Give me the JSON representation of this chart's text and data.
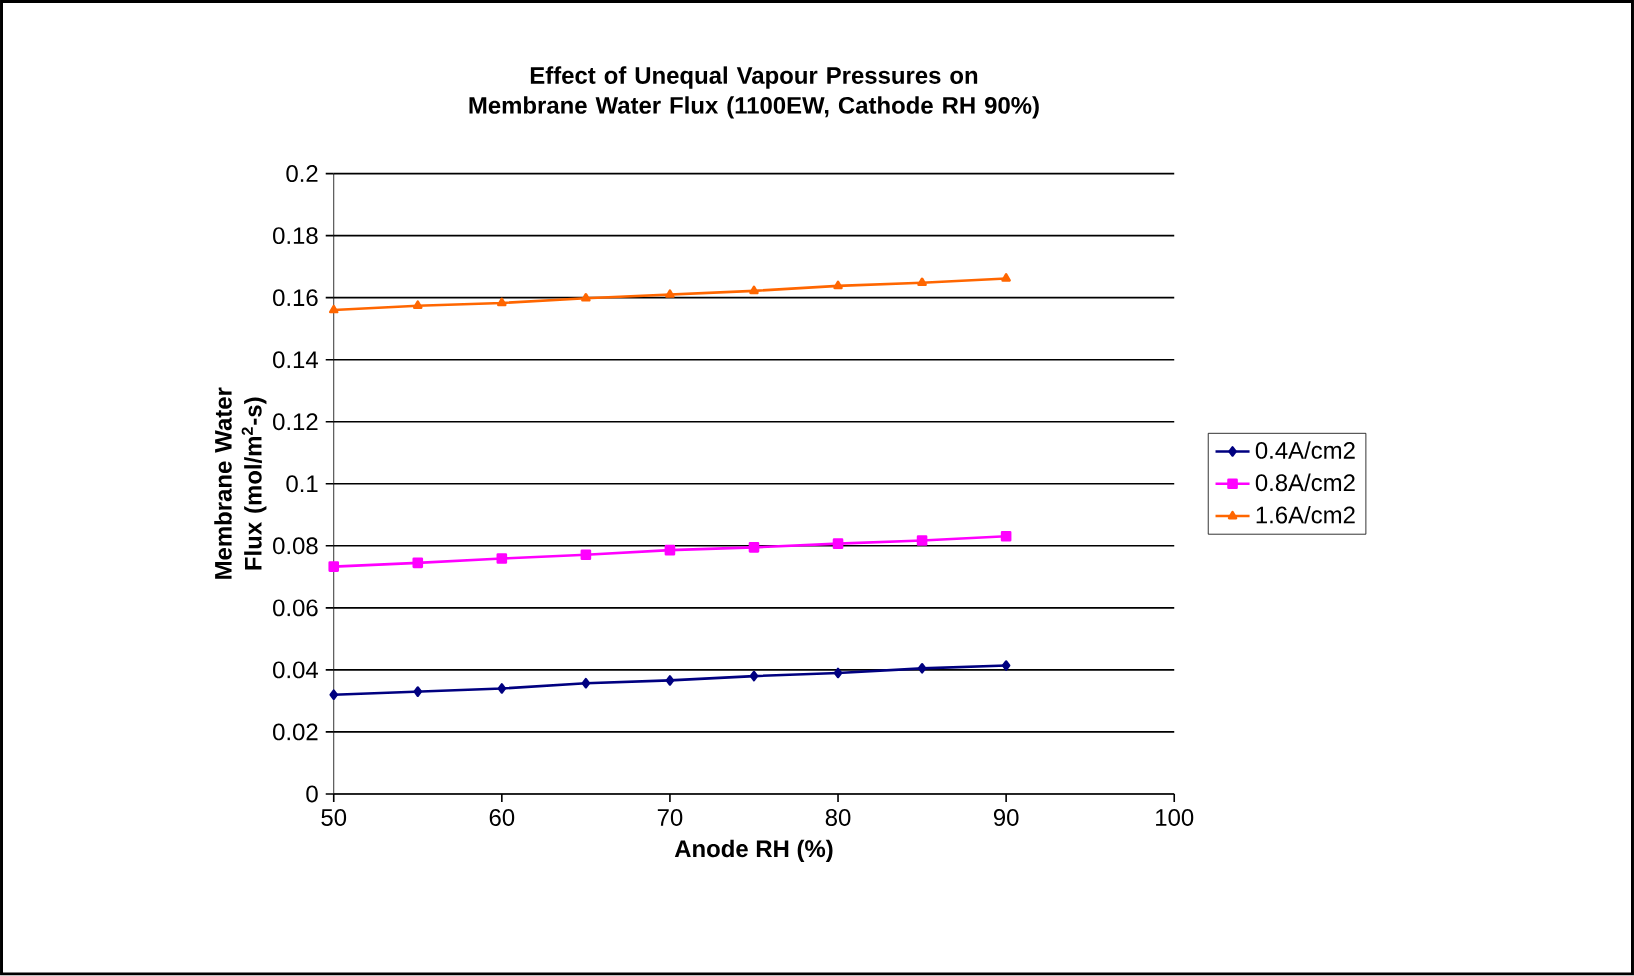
{
  "chart_data": {
    "type": "line",
    "title": "Effect of Unequal Vapour Pressures on Membrane Water Flux (1100EW, Cathode RH 90%)",
    "xlabel": "Anode RH (%)",
    "ylabel": "Membrane Water Flux (mol/m$^{2}$-s)",
    "x": [
      50,
      55,
      60,
      65,
      70,
      75,
      80,
      85,
      90
    ],
    "series": [
      {
        "name": "0.4A/cm2",
        "color": "#000080",
        "marker": "diamond",
        "values": [
          0.032,
          0.033,
          0.034,
          0.0357,
          0.0366,
          0.038,
          0.039,
          0.0405,
          0.0414
        ]
      },
      {
        "name": "0.8A/cm2",
        "color": "#ff00ff",
        "marker": "square",
        "values": [
          0.0733,
          0.0745,
          0.0759,
          0.0771,
          0.0786,
          0.0795,
          0.0807,
          0.0817,
          0.0831
        ]
      },
      {
        "name": "1.6A/cm2",
        "color": "#ff6600",
        "marker": "triangle",
        "values": [
          0.156,
          0.1574,
          0.1583,
          0.1598,
          0.161,
          0.1622,
          0.1638,
          0.1648,
          0.1662
        ]
      }
    ],
    "xlim": [
      50,
      100
    ],
    "xticks": [
      50,
      60,
      70,
      80,
      90,
      100
    ],
    "ylim": [
      0,
      0.2
    ],
    "yticks": [
      0,
      0.02,
      0.04,
      0.06,
      0.08,
      0.1,
      0.12,
      0.14,
      0.16,
      0.18,
      0.2
    ],
    "grid": "y",
    "legend": "right",
    "line_style": "solid"
  }
}
